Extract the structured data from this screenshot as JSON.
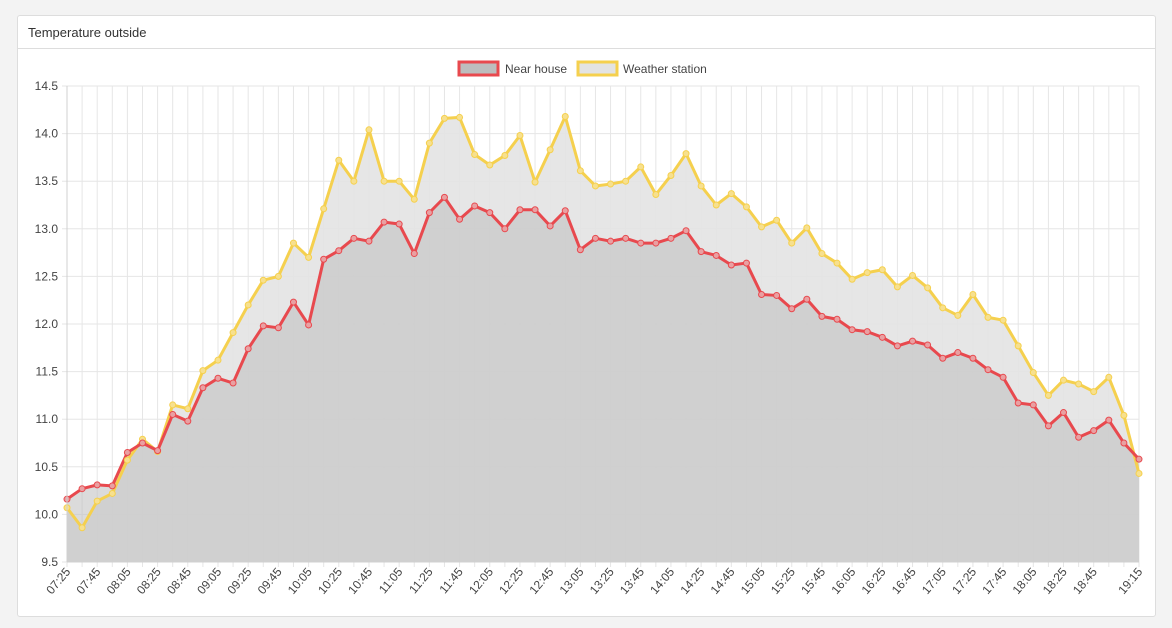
{
  "panel": {
    "title": "Temperature outside"
  },
  "chart_data": {
    "type": "line",
    "title": "",
    "xlabel": "",
    "ylabel": "",
    "ylim": [
      9.5,
      14.5
    ],
    "yticks": [
      "14.5",
      "14.0",
      "13.5",
      "13.0",
      "12.5",
      "12.0",
      "11.5",
      "11.0",
      "10.5",
      "10.0",
      "9.5"
    ],
    "x": [
      "07:25",
      "07:35",
      "07:45",
      "07:55",
      "08:05",
      "08:15",
      "08:25",
      "08:35",
      "08:45",
      "08:55",
      "09:05",
      "09:15",
      "09:25",
      "09:35",
      "09:45",
      "09:55",
      "10:05",
      "10:15",
      "10:25",
      "10:35",
      "10:45",
      "10:55",
      "11:05",
      "11:15",
      "11:25",
      "11:35",
      "11:45",
      "11:55",
      "12:05",
      "12:15",
      "12:25",
      "12:35",
      "12:45",
      "12:55",
      "13:05",
      "13:15",
      "13:25",
      "13:35",
      "13:45",
      "13:55",
      "14:05",
      "14:15",
      "14:25",
      "14:35",
      "14:45",
      "14:55",
      "15:05",
      "15:15",
      "15:25",
      "15:35",
      "15:45",
      "15:55",
      "16:05",
      "16:15",
      "16:25",
      "16:35",
      "16:45",
      "16:55",
      "17:05",
      "17:15",
      "17:25",
      "17:35",
      "17:45",
      "17:55",
      "18:05",
      "18:15",
      "18:25",
      "18:35",
      "18:45",
      "18:55",
      "19:05",
      "19:15"
    ],
    "x_tick_labels": [
      "07:25",
      "07:45",
      "08:05",
      "08:25",
      "08:45",
      "09:05",
      "09:25",
      "09:45",
      "10:05",
      "10:25",
      "10:45",
      "11:05",
      "11:25",
      "11:45",
      "12:05",
      "12:25",
      "12:45",
      "13:05",
      "13:25",
      "13:45",
      "14:05",
      "14:25",
      "14:45",
      "15:05",
      "15:25",
      "15:45",
      "16:05",
      "16:25",
      "16:45",
      "17:05",
      "17:25",
      "17:45",
      "18:05",
      "18:25",
      "18:45",
      "19:15"
    ],
    "grid": true,
    "legend_position": "top-center",
    "series": [
      {
        "name": "Near house",
        "color": "#e8494e",
        "fill": "#bdbdbd",
        "values": [
          10.16,
          10.27,
          10.31,
          10.3,
          10.65,
          10.75,
          10.67,
          11.05,
          10.98,
          11.33,
          11.43,
          11.38,
          11.74,
          11.98,
          11.96,
          12.23,
          11.99,
          12.68,
          12.77,
          12.9,
          12.87,
          13.07,
          13.05,
          12.74,
          13.17,
          13.33,
          13.1,
          13.24,
          13.17,
          13.0,
          13.2,
          13.2,
          13.03,
          13.19,
          12.78,
          12.9,
          12.87,
          12.9,
          12.85,
          12.85,
          12.9,
          12.98,
          12.76,
          12.72,
          12.62,
          12.64,
          12.31,
          12.3,
          12.16,
          12.26,
          12.08,
          12.05,
          11.94,
          11.92,
          11.86,
          11.77,
          11.82,
          11.78,
          11.64,
          11.7,
          11.64,
          11.52,
          11.44,
          11.17,
          11.15,
          10.93,
          11.07,
          10.81,
          10.88,
          10.99,
          10.75,
          10.58
        ]
      },
      {
        "name": "Weather station",
        "color": "#f5d04e",
        "fill": "#e3e3e3",
        "values": [
          10.07,
          9.86,
          10.14,
          10.22,
          10.57,
          10.79,
          10.66,
          11.15,
          11.11,
          11.51,
          11.62,
          11.91,
          12.2,
          12.46,
          12.5,
          12.85,
          12.7,
          13.21,
          13.72,
          13.5,
          14.04,
          13.5,
          13.5,
          13.31,
          13.9,
          14.16,
          14.17,
          13.78,
          13.67,
          13.77,
          13.98,
          13.49,
          13.83,
          14.18,
          13.61,
          13.45,
          13.47,
          13.5,
          13.65,
          13.36,
          13.56,
          13.79,
          13.45,
          13.25,
          13.37,
          13.23,
          13.02,
          13.09,
          12.85,
          13.01,
          12.74,
          12.64,
          12.47,
          12.54,
          12.57,
          12.39,
          12.51,
          12.38,
          12.17,
          12.09,
          12.31,
          12.07,
          12.04,
          11.77,
          11.49,
          11.25,
          11.41,
          11.37,
          11.29,
          11.44,
          11.04,
          10.43
        ]
      }
    ]
  }
}
